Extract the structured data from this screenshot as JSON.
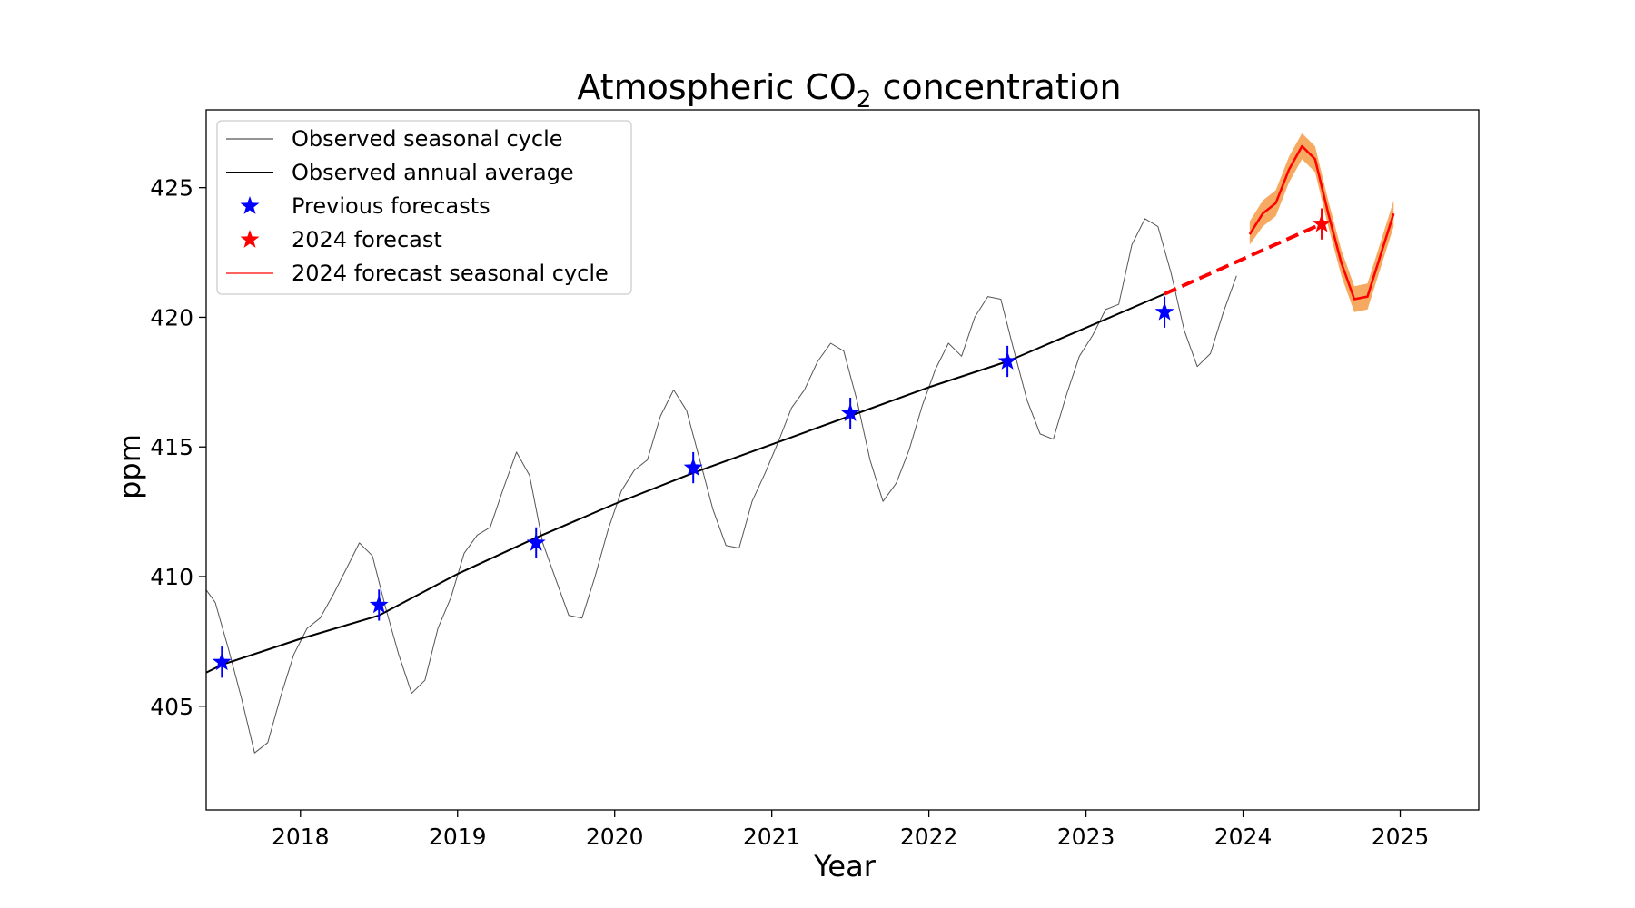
{
  "chart_data": {
    "type": "line",
    "title_main": "Atmospheric CO",
    "title_sub": "2",
    "title_rest": " concentration",
    "xlabel": "Year",
    "ylabel": "ppm",
    "xlim": [
      2017.4,
      2025.5
    ],
    "ylim": [
      401,
      428
    ],
    "x_ticks": [
      2018,
      2019,
      2020,
      2021,
      2022,
      2023,
      2024,
      2025
    ],
    "x_tick_labels": [
      "2018",
      "2019",
      "2020",
      "2021",
      "2022",
      "2023",
      "2024",
      "2025"
    ],
    "y_ticks": [
      405,
      410,
      415,
      420,
      425
    ],
    "y_tick_labels": [
      "405",
      "410",
      "415",
      "420",
      "425"
    ],
    "grid": false,
    "legend_position": "top-left",
    "legend": [
      {
        "label": "Observed seasonal cycle",
        "kind": "line",
        "color": "#555555"
      },
      {
        "label": "Observed annual average",
        "kind": "line",
        "color": "#000000"
      },
      {
        "label": "Previous forecasts",
        "kind": "star",
        "color": "#0000ff"
      },
      {
        "label": "2024 forecast",
        "kind": "star",
        "color": "#ff0000"
      },
      {
        "label": "2024 forecast seasonal cycle",
        "kind": "line",
        "color": "#ff0000"
      }
    ],
    "series": [
      {
        "key": "seasonal",
        "color": "#555555",
        "x": [
          2017.375,
          2017.458,
          2017.542,
          2017.625,
          2017.708,
          2017.792,
          2017.875,
          2017.958,
          2018.042,
          2018.125,
          2018.208,
          2018.292,
          2018.375,
          2018.458,
          2018.542,
          2018.625,
          2018.708,
          2018.792,
          2018.875,
          2018.958,
          2019.042,
          2019.125,
          2019.208,
          2019.292,
          2019.375,
          2019.458,
          2019.542,
          2019.625,
          2019.708,
          2019.792,
          2019.875,
          2019.958,
          2020.042,
          2020.125,
          2020.208,
          2020.292,
          2020.375,
          2020.458,
          2020.542,
          2020.625,
          2020.708,
          2020.792,
          2020.875,
          2020.958,
          2021.042,
          2021.125,
          2021.208,
          2021.292,
          2021.375,
          2021.458,
          2021.542,
          2021.625,
          2021.708,
          2021.792,
          2021.875,
          2021.958,
          2022.042,
          2022.125,
          2022.208,
          2022.292,
          2022.375,
          2022.458,
          2022.542,
          2022.625,
          2022.708,
          2022.792,
          2022.875,
          2022.958,
          2023.042,
          2023.125,
          2023.208,
          2023.292,
          2023.375,
          2023.458,
          2023.542,
          2023.625,
          2023.708,
          2023.792,
          2023.875,
          2023.958
        ],
        "y": [
          409.7,
          409.0,
          407.2,
          405.3,
          403.2,
          403.6,
          405.4,
          407.0,
          408.0,
          408.4,
          409.3,
          410.3,
          411.3,
          410.8,
          408.8,
          407.0,
          405.5,
          406.0,
          408.0,
          409.2,
          410.9,
          411.6,
          411.9,
          413.4,
          414.8,
          413.9,
          411.3,
          409.9,
          408.5,
          408.4,
          410.0,
          411.8,
          413.3,
          414.1,
          414.5,
          416.2,
          417.2,
          416.4,
          414.5,
          412.6,
          411.2,
          411.1,
          412.9,
          414.0,
          415.2,
          416.5,
          417.2,
          418.3,
          419.0,
          418.7,
          416.8,
          414.5,
          412.9,
          413.6,
          414.9,
          416.6,
          418.0,
          419.0,
          418.5,
          420.0,
          420.8,
          420.7,
          418.7,
          416.8,
          415.5,
          415.3,
          417.0,
          418.5,
          419.3,
          420.3,
          420.5,
          422.8,
          423.8,
          423.5,
          421.7,
          419.5,
          418.1,
          418.6,
          420.2,
          421.6
        ]
      },
      {
        "key": "annual",
        "color": "#000000",
        "x": [
          2017.4,
          2017.5,
          2018.0,
          2018.5,
          2019.0,
          2019.5,
          2020.0,
          2020.5,
          2021.0,
          2021.5,
          2022.0,
          2022.5,
          2023.0,
          2023.5
        ],
        "y": [
          406.3,
          406.6,
          407.6,
          408.5,
          410.1,
          411.5,
          412.8,
          414.0,
          415.1,
          416.2,
          417.3,
          418.3,
          419.6,
          420.9
        ]
      },
      {
        "key": "forecast_cycle",
        "color": "#ff0000",
        "band_color": "#f5a050",
        "x": [
          2024.042,
          2024.125,
          2024.208,
          2024.292,
          2024.375,
          2024.458,
          2024.542,
          2024.625,
          2024.708,
          2024.792,
          2024.875,
          2024.958
        ],
        "y": [
          423.2,
          424.0,
          424.4,
          425.7,
          426.6,
          426.1,
          424.0,
          422.1,
          420.7,
          420.8,
          422.4,
          424.0
        ],
        "lower": [
          422.8,
          423.5,
          423.9,
          425.2,
          426.1,
          425.6,
          423.5,
          421.6,
          420.2,
          420.3,
          421.9,
          423.5
        ],
        "upper": [
          423.7,
          424.5,
          424.9,
          426.2,
          427.1,
          426.6,
          424.5,
          422.6,
          421.2,
          421.3,
          422.9,
          424.5
        ]
      },
      {
        "key": "forecast_trend",
        "color": "#ff0000",
        "dashed": true,
        "x": [
          2023.5,
          2024.5
        ],
        "y": [
          420.9,
          423.6
        ]
      }
    ],
    "previous_forecasts": {
      "color": "#0000ff",
      "x": [
        2017.5,
        2018.5,
        2019.5,
        2020.5,
        2021.5,
        2022.5,
        2023.5
      ],
      "y": [
        406.7,
        408.9,
        411.3,
        414.2,
        416.3,
        418.3,
        420.2
      ],
      "err": [
        0.6,
        0.6,
        0.6,
        0.6,
        0.6,
        0.6,
        0.6
      ]
    },
    "forecast_2024": {
      "color": "#ff0000",
      "x": 2024.5,
      "y": 423.6,
      "err": 0.6
    }
  }
}
